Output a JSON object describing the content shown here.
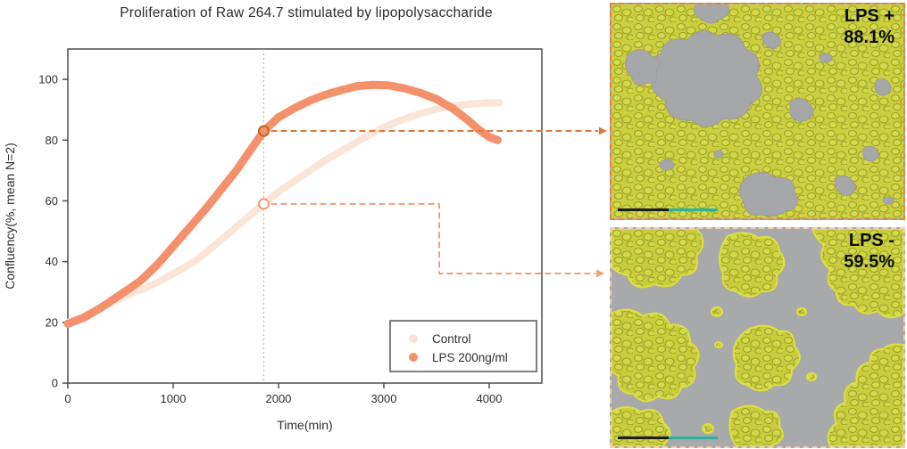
{
  "figure": {
    "title": "Proliferation of Raw 264.7 stimulated by lipopolysaccharide"
  },
  "chart_data": {
    "type": "scatter",
    "title": "Proliferation of Raw 264.7 stimulated by lipopolysaccharide",
    "xlabel": "Time(min)",
    "ylabel": "Confluency(%, mean N=2)",
    "xlim": [
      0,
      4500
    ],
    "ylim": [
      0,
      110
    ],
    "xticks": [
      0,
      1000,
      2000,
      3000,
      4000
    ],
    "yticks": [
      0,
      20,
      40,
      60,
      80,
      100
    ],
    "grid": false,
    "legend_position": "lower right",
    "series": [
      {
        "name": "Control",
        "color": "#fae5d7",
        "x": [
          0,
          150,
          300,
          450,
          600,
          750,
          900,
          1050,
          1200,
          1350,
          1500,
          1650,
          1860,
          2000,
          2150,
          2300,
          2450,
          2600,
          2750,
          2900,
          3050,
          3200,
          3350,
          3500,
          3650,
          3800,
          3950,
          4100
        ],
        "y": [
          20,
          22,
          24.5,
          27,
          29.5,
          31.5,
          34,
          37,
          40,
          44,
          48.5,
          53,
          59,
          63,
          66.5,
          70,
          73.5,
          76.5,
          79.5,
          82.5,
          85,
          87,
          88.8,
          90.2,
          91.2,
          91.8,
          92.2,
          92.3
        ]
      },
      {
        "name": "LPS 200ng/ml",
        "color": "#f4916c",
        "x": [
          0,
          150,
          300,
          450,
          600,
          700,
          850,
          1000,
          1150,
          1300,
          1450,
          1600,
          1730,
          1860,
          2000,
          2150,
          2300,
          2450,
          2600,
          2750,
          2900,
          3050,
          3200,
          3350,
          3500,
          3650,
          3800,
          3900,
          4000,
          4080
        ],
        "y": [
          19.5,
          21.5,
          24.5,
          28,
          31.5,
          34,
          39,
          45,
          51,
          57,
          63.5,
          70,
          76.5,
          83,
          87.5,
          90.5,
          93,
          95,
          96.5,
          97.8,
          98.2,
          98,
          97,
          95.5,
          93.5,
          90.5,
          86.5,
          83.5,
          81,
          80
        ]
      }
    ],
    "annotations": {
      "vline_x": 1860,
      "markers": [
        {
          "series": "LPS 200ng/ml",
          "x": 1860,
          "y": 83,
          "style": "filled"
        },
        {
          "series": "Control",
          "x": 1860,
          "y": 59,
          "style": "open"
        }
      ]
    }
  },
  "micrographs": [
    {
      "label": "LPS +",
      "value": "88.1%",
      "border_color": "#df8347",
      "arrow_color": "#dc7a3e"
    },
    {
      "label": "LPS -",
      "value": "59.5%",
      "border_color": "#f4cdb6",
      "arrow_color": "#f0a078"
    }
  ],
  "colors": {
    "lps_series": "#f4916c",
    "control_series": "#fae5d7",
    "marker_ring": "#c06a28",
    "axis": "#4d4d4d",
    "vline": "#c4b6aa",
    "cell_mask_yellow": "#cbcf3e",
    "micrograph_gray": "#a8a9ab",
    "scalebar_black": "#1c1c1c",
    "scalebar_teal": "#2bb2a0",
    "image_label_text": "#0c0c0c"
  }
}
